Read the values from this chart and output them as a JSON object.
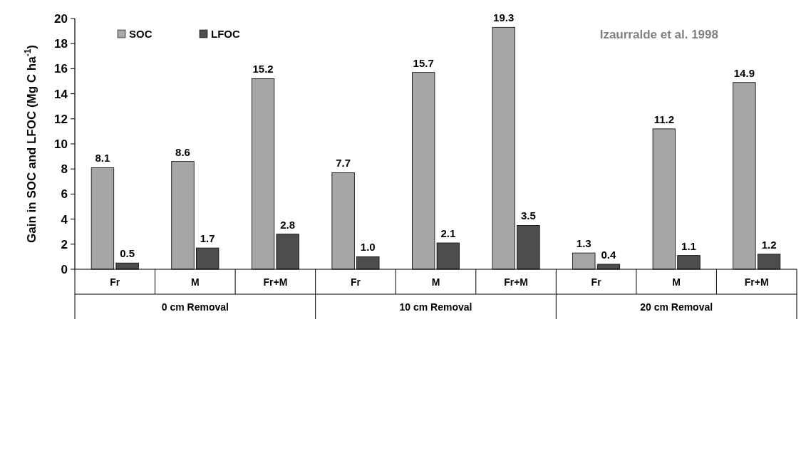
{
  "chart_data": {
    "type": "bar",
    "ylabel": "Gain in SOC and LFOC (Mg C ha$^{-1}$)",
    "categories": [
      "Fr",
      "M",
      "Fr+M",
      "Fr",
      "M",
      "Fr+M",
      "Fr",
      "M",
      "Fr+M"
    ],
    "series": [
      {
        "name": "SOC",
        "color": "#a6a6a6",
        "values": [
          8.1,
          8.6,
          15.2,
          7.7,
          15.7,
          19.3,
          1.3,
          11.2,
          14.9
        ],
        "value_labels": [
          "8.1",
          "8.6",
          "15.2",
          "7.7",
          "15.7",
          "19.3",
          "1.3",
          "11.2",
          "14.9"
        ]
      },
      {
        "name": "LFOC",
        "color": "#4d4d4d",
        "values": [
          0.5,
          1.7,
          2.8,
          1.0,
          2.1,
          3.5,
          0.4,
          1.1,
          1.2
        ],
        "value_labels": [
          "0.5",
          "1.7",
          "2.8",
          "1.0",
          "2.1",
          "3.5",
          "0.4",
          "1.1",
          "1.2"
        ]
      }
    ],
    "ylim": [
      0,
      20
    ],
    "yticks": [
      0,
      2,
      4,
      6,
      8,
      10,
      12,
      14,
      16,
      18,
      20
    ],
    "grid": false,
    "legend": "top left",
    "annotations": [
      "0 cm Removal",
      "10 cm Removal",
      "20 cm Removal",
      "Izaurralde et al. 1998"
    ]
  }
}
